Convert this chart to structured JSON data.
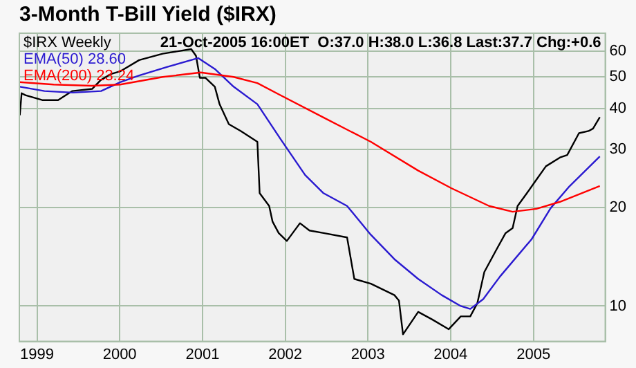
{
  "chart_data": {
    "type": "line",
    "title": "3-Month T-Bill Yield ($IRX)",
    "annotations": [
      "21-Oct-2005 16:00ET  O:37.0 H:38.0 L:36.8 Last:37.7 Chg:+0.6"
    ],
    "series": [
      {
        "name": "$IRX Weekly",
        "color": "#000000",
        "x": [
          "1998-10-17",
          "1998-10-25",
          "1998-11-11",
          "1999-01-24",
          "1999-04-04",
          "1999-06-06",
          "1999-09-02",
          "1999-10-09",
          "1999-11-22",
          "2000-01-03",
          "2000-03-27",
          "2000-07-09",
          "2000-11-12",
          "2000-12-03",
          "2000-12-20",
          "2001-01-14",
          "2001-02-24",
          "2001-03-17",
          "2001-04-27",
          "2001-06-19",
          "2001-08-31",
          "2001-09-10",
          "2001-10-22",
          "2001-11-06",
          "2001-12-03",
          "2002-01-08",
          "2002-03-07",
          "2002-04-18",
          "2002-06-19",
          "2002-10-01",
          "2002-11-02",
          "2003-01-14",
          "2003-04-28",
          "2003-05-18",
          "2003-06-05",
          "2003-08-11",
          "2003-10-12",
          "2003-12-24",
          "2004-02-15",
          "2004-03-28",
          "2004-04-28",
          "2004-05-29",
          "2004-07-20",
          "2004-08-31",
          "2004-10-01",
          "2004-10-23",
          "2004-12-03",
          "2005-01-14",
          "2005-02-25",
          "2005-04-28",
          "2005-05-30",
          "2005-07-21",
          "2005-09-01",
          "2005-09-21",
          "2005-10-21"
        ],
        "values": [
          38.2,
          44.6,
          44.0,
          42.5,
          42.5,
          45.3,
          46,
          48.9,
          51,
          52,
          56.3,
          58.9,
          60.8,
          58,
          49.7,
          49.7,
          46.7,
          41.3,
          35.9,
          34.2,
          31.7,
          22.1,
          20.2,
          18.1,
          16.7,
          15.8,
          17.9,
          17.0,
          16.7,
          16.2,
          12.1,
          11.7,
          10.8,
          10.4,
          8.2,
          9.6,
          9.1,
          8.5,
          9.3,
          9.3,
          10.2,
          12.7,
          14.8,
          16.7,
          17.3,
          20.2,
          22.1,
          24.3,
          26.7,
          28.4,
          28.9,
          33.7,
          34.2,
          34.8,
          37.7
        ]
      },
      {
        "name": "EMA(50) 28.60",
        "color": "#2a1ad0",
        "x": [
          "1998-10-17",
          "1999-02-03",
          "1999-06-08",
          "1999-10-11",
          "2000-01-03",
          "2000-03-27",
          "2000-07-30",
          "2000-12-13",
          "2001-02-24",
          "2001-05-18",
          "2001-08-31",
          "2001-12-13",
          "2002-03-30",
          "2002-06-19",
          "2002-10-01",
          "2003-01-14",
          "2003-04-28",
          "2003-08-11",
          "2003-11-23",
          "2004-02-15",
          "2004-03-28",
          "2004-05-24",
          "2004-08-06",
          "2004-12-24",
          "2005-03-18",
          "2005-06-09",
          "2005-10-21"
        ],
        "values": [
          46.7,
          45.3,
          44.8,
          45.3,
          48.2,
          50.5,
          53.7,
          57.1,
          52.9,
          46.7,
          41.3,
          32.2,
          25.1,
          22.1,
          20.2,
          16.5,
          13.9,
          12.1,
          10.8,
          10.0,
          9.8,
          10.5,
          12.3,
          16.0,
          19.9,
          23.2,
          28.6
        ]
      },
      {
        "name": "EMA(200) 23.24",
        "color": "#ff0000",
        "x": [
          "1998-10-17",
          "1999-03-16",
          "1999-08-31",
          "2000-01-03",
          "2000-07-09",
          "2000-12-24",
          "2001-05-18",
          "2001-08-31",
          "2001-12-13",
          "2002-06-19",
          "2003-01-14",
          "2003-08-11",
          "2004-01-04",
          "2004-06-19",
          "2004-10-01",
          "2005-01-14",
          "2005-04-28",
          "2005-10-21"
        ],
        "values": [
          48.2,
          47.4,
          47,
          47.4,
          50.0,
          51.6,
          50,
          47.9,
          43.9,
          37.6,
          31.7,
          25.9,
          22.9,
          20.2,
          19.4,
          19.8,
          20.8,
          23.24
        ]
      }
    ],
    "xlim": [
      "1998-10-15",
      "2005-11-14"
    ],
    "xticks": [
      {
        "value": "1999-01-01",
        "label": "1999"
      },
      {
        "value": "2000-01-01",
        "label": "2000"
      },
      {
        "value": "2001-01-01",
        "label": "2001"
      },
      {
        "value": "2002-01-01",
        "label": "2002"
      },
      {
        "value": "2003-01-01",
        "label": "2003"
      },
      {
        "value": "2004-01-01",
        "label": "2004"
      },
      {
        "value": "2005-01-01",
        "label": "2005"
      }
    ],
    "ylim": [
      7.8,
      68
    ],
    "yticks": [
      10,
      20,
      30,
      40,
      50,
      60
    ],
    "log": "y",
    "grid": true,
    "legend": "top left",
    "marker": "none",
    "line_style": "solid"
  }
}
